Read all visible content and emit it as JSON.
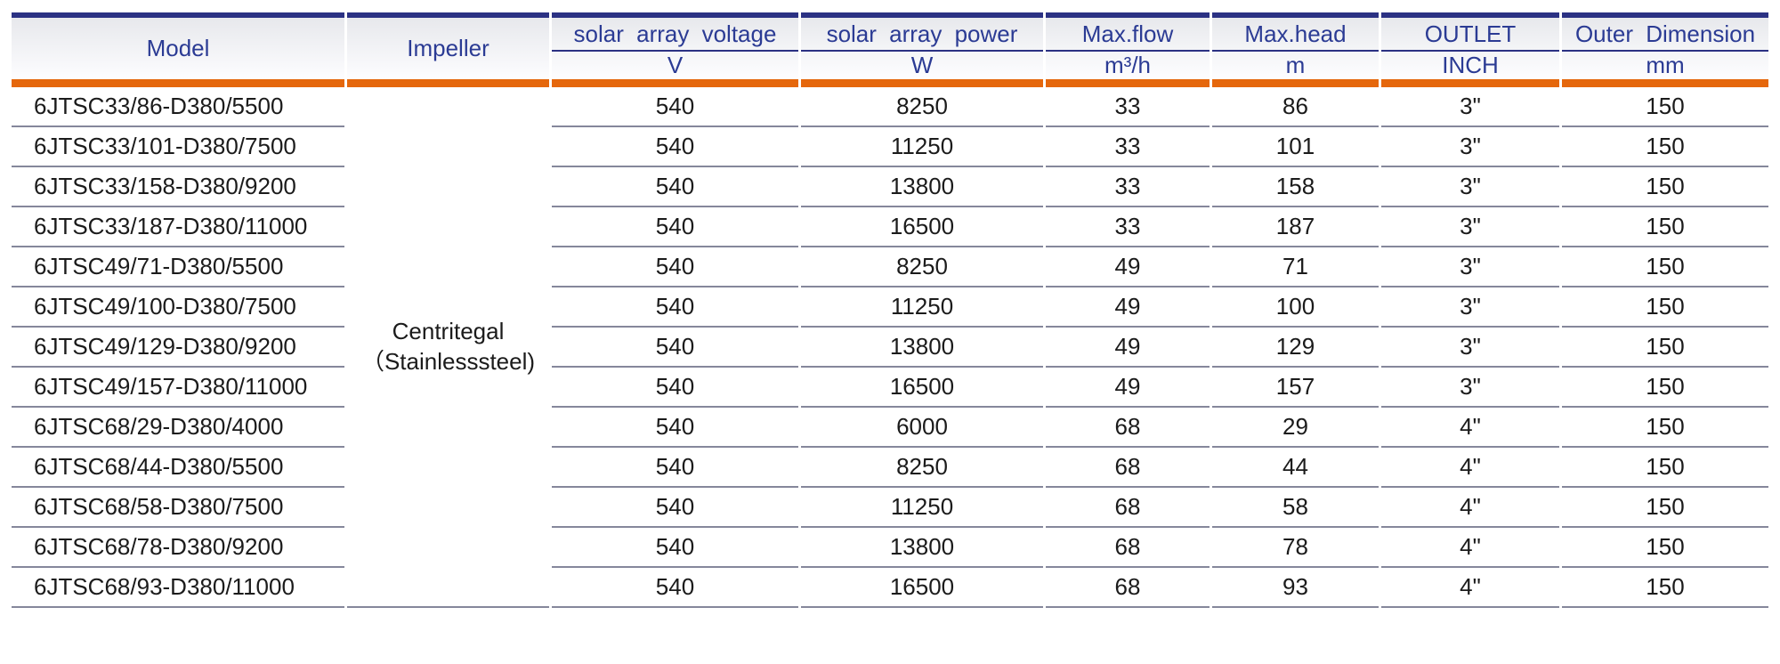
{
  "table": {
    "header": {
      "model_label": "Model",
      "impeller_label": "Impeller",
      "spec_columns": [
        {
          "label": "solar array voltage",
          "unit": "V"
        },
        {
          "label": "solar array power",
          "unit": "W"
        },
        {
          "label": "Max.flow",
          "unit": "m³/h"
        },
        {
          "label": "Max.head",
          "unit": "m"
        },
        {
          "label": "OUTLET",
          "unit": "INCH"
        },
        {
          "label": "Outer Dimension",
          "unit": "mm"
        }
      ]
    },
    "impeller": {
      "line1": "Centritegal",
      "line2": "（Stainlesssteel)"
    },
    "rows": [
      {
        "model": "6JTSC33/86-D380/5500",
        "voltage": "540",
        "power": "8250",
        "flow": "33",
        "head": "86",
        "outlet": "3\"",
        "dimension": "150"
      },
      {
        "model": "6JTSC33/101-D380/7500",
        "voltage": "540",
        "power": "11250",
        "flow": "33",
        "head": "101",
        "outlet": "3\"",
        "dimension": "150"
      },
      {
        "model": "6JTSC33/158-D380/9200",
        "voltage": "540",
        "power": "13800",
        "flow": "33",
        "head": "158",
        "outlet": "3\"",
        "dimension": "150"
      },
      {
        "model": "6JTSC33/187-D380/11000",
        "voltage": "540",
        "power": "16500",
        "flow": "33",
        "head": "187",
        "outlet": "3\"",
        "dimension": "150"
      },
      {
        "model": "6JTSC49/71-D380/5500",
        "voltage": "540",
        "power": "8250",
        "flow": "49",
        "head": "71",
        "outlet": "3\"",
        "dimension": "150"
      },
      {
        "model": "6JTSC49/100-D380/7500",
        "voltage": "540",
        "power": "11250",
        "flow": "49",
        "head": "100",
        "outlet": "3\"",
        "dimension": "150"
      },
      {
        "model": "6JTSC49/129-D380/9200",
        "voltage": "540",
        "power": "13800",
        "flow": "49",
        "head": "129",
        "outlet": "3\"",
        "dimension": "150"
      },
      {
        "model": "6JTSC49/157-D380/11000",
        "voltage": "540",
        "power": "16500",
        "flow": "49",
        "head": "157",
        "outlet": "3\"",
        "dimension": "150"
      },
      {
        "model": "6JTSC68/29-D380/4000",
        "voltage": "540",
        "power": "6000",
        "flow": "68",
        "head": "29",
        "outlet": "4\"",
        "dimension": "150"
      },
      {
        "model": "6JTSC68/44-D380/5500",
        "voltage": "540",
        "power": "8250",
        "flow": "68",
        "head": "44",
        "outlet": "4\"",
        "dimension": "150"
      },
      {
        "model": "6JTSC68/58-D380/7500",
        "voltage": "540",
        "power": "11250",
        "flow": "68",
        "head": "58",
        "outlet": "4\"",
        "dimension": "150"
      },
      {
        "model": "6JTSC68/78-D380/9200",
        "voltage": "540",
        "power": "13800",
        "flow": "68",
        "head": "78",
        "outlet": "4\"",
        "dimension": "150"
      },
      {
        "model": "6JTSC68/93-D380/11000",
        "voltage": "540",
        "power": "16500",
        "flow": "68",
        "head": "93",
        "outlet": "4\"",
        "dimension": "150"
      }
    ]
  },
  "colors": {
    "navy_line": "#2b3183",
    "header_text": "#2b3b94",
    "orange_line": "#e5670c",
    "row_line": "#85879b",
    "body_text": "#1b1b1b"
  }
}
